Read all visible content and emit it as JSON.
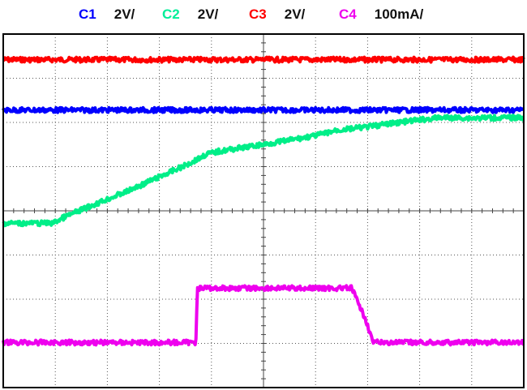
{
  "legend": {
    "items": [
      {
        "channel": "C1",
        "scale": "2V/",
        "color": "#0000ff"
      },
      {
        "channel": "C2",
        "scale": "2V/",
        "color": "#00ee88"
      },
      {
        "channel": "C3",
        "scale": "2V/",
        "color": "#ff0000"
      },
      {
        "channel": "C4",
        "scale": "100mA/",
        "color": "#ee00ee"
      }
    ]
  },
  "chart_data": {
    "type": "line",
    "title": "",
    "xlabel": "",
    "ylabel": "",
    "x_divisions": 10,
    "y_divisions": 8,
    "grid": true,
    "xlim": [
      0,
      10
    ],
    "ylim": [
      0,
      8
    ],
    "series": [
      {
        "name": "C3",
        "color": "#ff0000",
        "unit_per_div": "2V/",
        "x": [
          0,
          10
        ],
        "y": [
          7.42,
          7.42
        ]
      },
      {
        "name": "C1",
        "color": "#0000ff",
        "unit_per_div": "2V/",
        "x": [
          0,
          10
        ],
        "y": [
          6.28,
          6.28
        ]
      },
      {
        "name": "C2",
        "color": "#00ee88",
        "unit_per_div": "2V/",
        "x": [
          0,
          0.95,
          1.2,
          1.7,
          2.4,
          3.1,
          3.5,
          3.75,
          3.9,
          4.2,
          5.0,
          6.0,
          6.4,
          7.0,
          7.6,
          8.4,
          9.0,
          10.0
        ],
        "y": [
          3.72,
          3.72,
          3.87,
          4.12,
          4.45,
          4.82,
          5.03,
          5.18,
          5.28,
          5.36,
          5.5,
          5.7,
          5.82,
          5.9,
          6.0,
          6.11,
          6.1,
          6.11
        ]
      },
      {
        "name": "C4",
        "color": "#ee00ee",
        "unit_per_div": "100mA/",
        "x": [
          0,
          3.7,
          3.73,
          6.7,
          6.82,
          6.96,
          7.06,
          7.1,
          10.0
        ],
        "y": [
          1.02,
          1.02,
          2.25,
          2.25,
          1.9,
          1.55,
          1.2,
          1.02,
          1.02
        ]
      }
    ]
  }
}
